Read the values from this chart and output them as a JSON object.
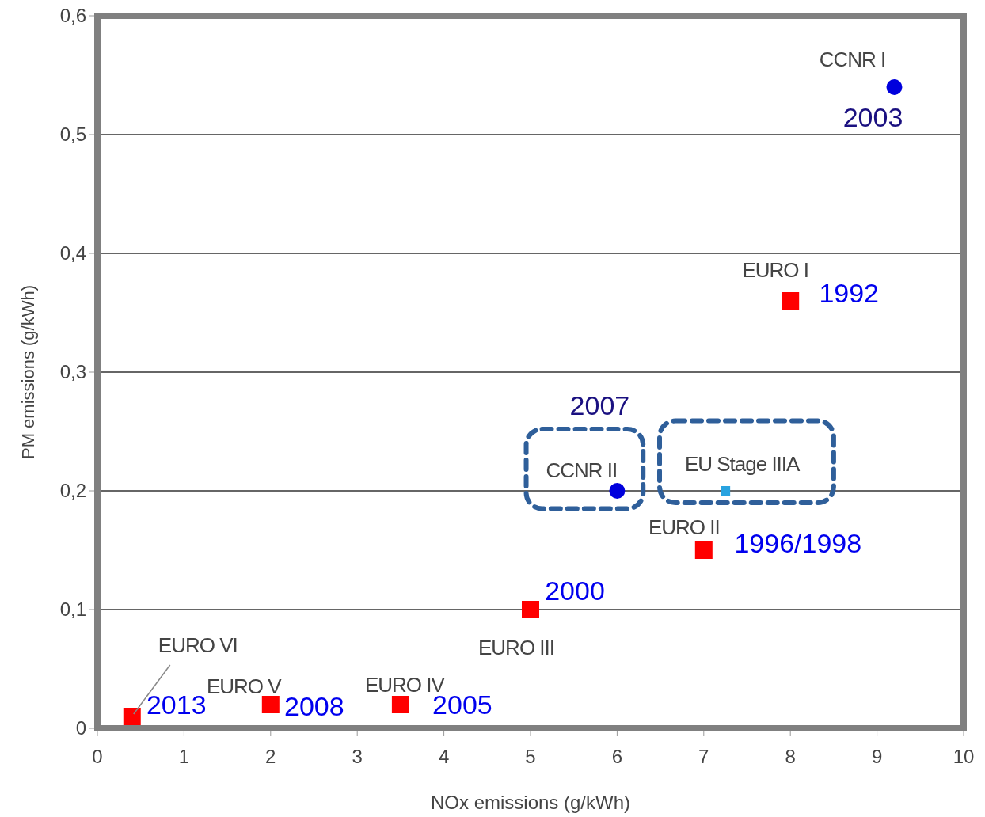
{
  "chart_data": {
    "type": "scatter",
    "xlabel": "NOx emissions (g/kWh)",
    "ylabel": "PM emissions (g/kWh)",
    "xlim": [
      0,
      10
    ],
    "xticks": [
      0,
      1,
      2,
      3,
      4,
      5,
      6,
      7,
      8,
      9,
      10
    ],
    "ylim": [
      0,
      0.6
    ],
    "yticks": [
      0,
      {
        "value": 0.1,
        "label": "0,1"
      },
      {
        "value": 0.2,
        "label": "0,2"
      },
      {
        "value": 0.3,
        "label": "0,3"
      },
      {
        "value": 0.4,
        "label": "0,4"
      },
      {
        "value": 0.5,
        "label": "0,5"
      },
      {
        "value": 0.6,
        "label": "0,6"
      }
    ],
    "grid": "y",
    "series": [
      {
        "color": "#0000dd",
        "marker": "circle",
        "x": [
          9.2,
          6
        ],
        "values": [
          0.54,
          0.2
        ]
      },
      {
        "color": "#29a3e0",
        "marker": "square",
        "x": [
          7.25
        ],
        "values": [
          0.2
        ]
      },
      {
        "color": "#ff0000",
        "marker": "square",
        "x": [
          8,
          7,
          5,
          3.5,
          2,
          0.4
        ],
        "values": [
          0.36,
          0.15,
          0.1,
          0.02,
          0.02,
          0.01
        ]
      }
    ],
    "annotations": [
      {
        "text": "CCNR I",
        "x": 9.2,
        "y": 0.54
      },
      {
        "text": "CCNR II",
        "x": 6,
        "y": 0.2
      },
      {
        "text": "EU Stage IIIA",
        "x": 7.25,
        "y": 0.2
      },
      {
        "text": "EURO I",
        "x": 8,
        "y": 0.36
      },
      {
        "text": "EURO II",
        "x": 7,
        "y": 0.15
      },
      {
        "text": "EURO III",
        "x": 5,
        "y": 0.1
      },
      {
        "text": "EURO IV",
        "x": 3.5,
        "y": 0.02
      },
      {
        "text": "EURO V",
        "x": 2,
        "y": 0.02
      },
      {
        "text": "EURO VI",
        "x": 0.4,
        "y": 0.01
      },
      {
        "text": "2003",
        "x": 9.2,
        "y": 0.54
      },
      {
        "text": "2007",
        "x": 6,
        "y": 0.2
      },
      {
        "text": "1992",
        "x": 8,
        "y": 0.36
      },
      {
        "text": "1996/1998",
        "x": 7,
        "y": 0.15
      },
      {
        "text": "2000",
        "x": 5,
        "y": 0.1
      },
      {
        "text": "2005",
        "x": 3.5,
        "y": 0.02
      },
      {
        "text": "2008",
        "x": 2,
        "y": 0.02
      },
      {
        "text": "2013",
        "x": 0.4,
        "y": 0.01
      }
    ]
  }
}
